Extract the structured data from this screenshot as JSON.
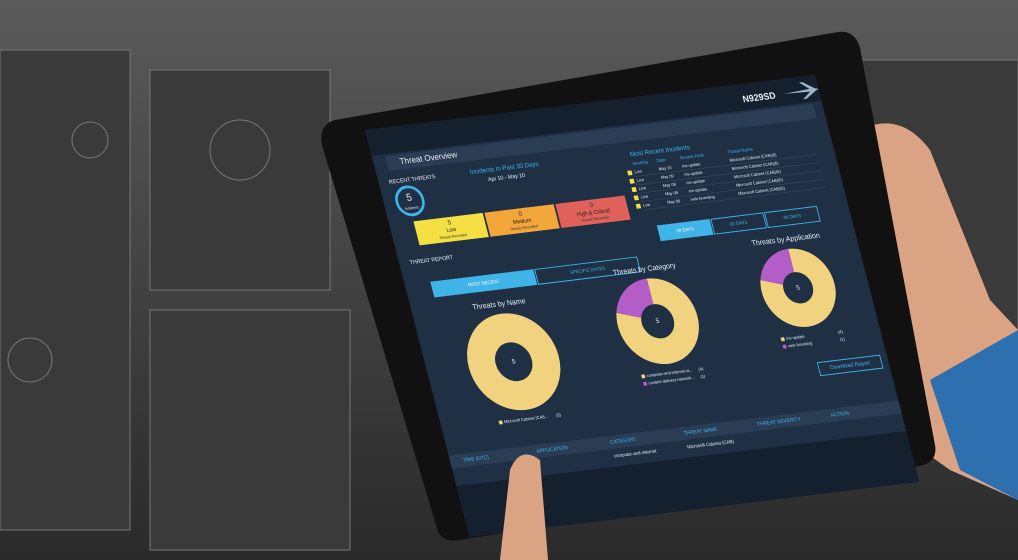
{
  "header": {
    "tail_number": "N929SD",
    "title": "Threat Overview"
  },
  "recent_threats": {
    "label": "RECENT THREATS",
    "count": "5",
    "count_label": "Incidents",
    "period_title": "Incidents In Past 30 Days",
    "period": "Apr 10 - May 10",
    "levels": [
      {
        "count": "5",
        "name": "Low",
        "note": "Threats Recorded"
      },
      {
        "count": "0",
        "name": "Medium",
        "note": "Threats Recorded"
      },
      {
        "count": "0",
        "name": "High & Critical",
        "note": "Threats Recorded"
      }
    ]
  },
  "incidents": {
    "title": "Most Recent Incidents",
    "columns": [
      "Severity",
      "Date",
      "Source Host",
      "Threat Name"
    ],
    "rows": [
      [
        "Low",
        "May 10",
        "ms-update",
        "Microsoft Cabinet (CAB)(6)"
      ],
      [
        "Low",
        "May 09",
        "ms-update",
        "Microsoft Cabinet (CAB)(6)"
      ],
      [
        "Low",
        "May 08",
        "ms-update",
        "Microsoft Cabinet (CAB)(6)"
      ],
      [
        "Low",
        "May 08",
        "ms-update",
        "Microsoft Cabinet (CAB)(6)"
      ],
      [
        "Low",
        "May 08",
        "web-browsing",
        "Microsoft Cabinet (CAB)(6)"
      ]
    ]
  },
  "range_tabs": [
    "30 DAYS",
    "60 DAYS",
    "90 DAYS"
  ],
  "report": {
    "label": "THREAT REPORT",
    "tabs": [
      "MOST RECENT",
      "SPECIFIC DATES"
    ],
    "download": "Download Report"
  },
  "chart_data": [
    {
      "type": "donut",
      "title": "Threats by Name",
      "total": 5,
      "categories": [
        "Microsoft Cabinet (CAB..."
      ],
      "values": [
        5
      ],
      "value_labels": [
        "(5)"
      ],
      "colors": [
        "#f1d27e"
      ]
    },
    {
      "type": "donut",
      "title": "Threats by Category",
      "total": 5,
      "categories": [
        "computer-and-internet-si...",
        "content-delivery-network..."
      ],
      "values": [
        4,
        1
      ],
      "value_labels": [
        "(4)",
        "(1)"
      ],
      "colors": [
        "#f1d27e",
        "#b45cc8"
      ]
    },
    {
      "type": "donut",
      "title": "Threats by Application",
      "total": 5,
      "categories": [
        "ms-update",
        "web-browsing"
      ],
      "values": [
        4,
        1
      ],
      "value_labels": [
        "(4)",
        "(1)"
      ],
      "colors": [
        "#f1d27e",
        "#b45cc8"
      ]
    }
  ],
  "event_table": {
    "columns": [
      "TIME (UTC)",
      "APPLICATION",
      "CATEGORY",
      "THREAT NAME",
      "THREAT SEVERITY",
      "ACTION"
    ],
    "row": [
      "computer-and-internet",
      "Microsoft Cabinet (CAB)"
    ]
  }
}
